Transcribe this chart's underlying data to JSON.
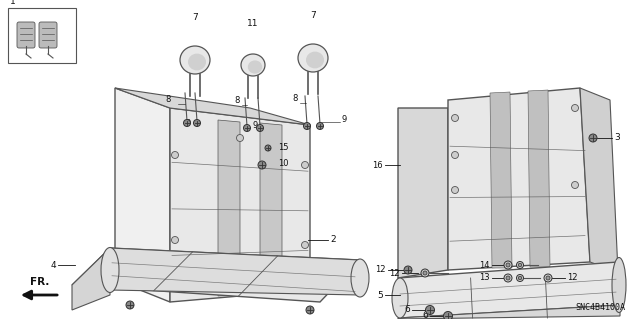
{
  "bg_color": "#ffffff",
  "line_color": "#555555",
  "dark_color": "#111111",
  "fig_width": 6.4,
  "fig_height": 3.19,
  "part_code": "SNC4B4100A"
}
